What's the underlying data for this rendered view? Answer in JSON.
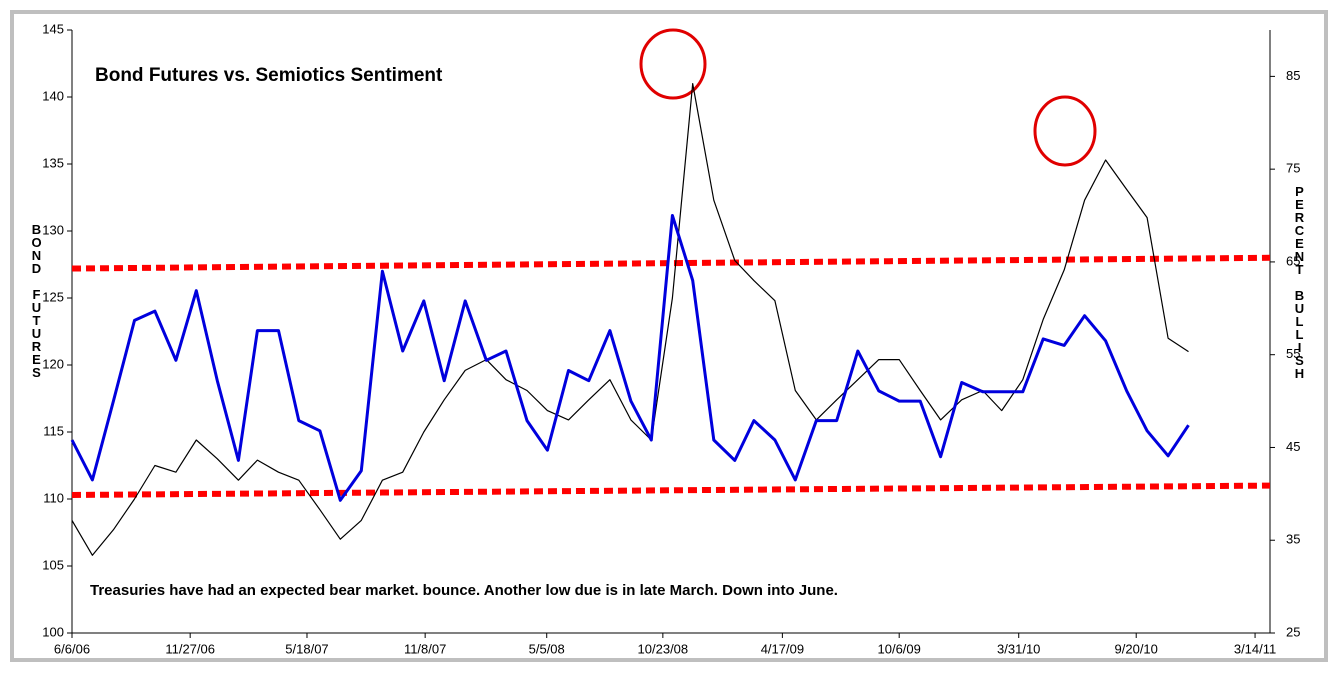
{
  "chart_data": {
    "type": "line",
    "title": "Bond Futures vs. Semiotics Sentiment",
    "annotation": "Treasuries  have had an expected bear market. bounce. Another low due  is in late March.  Down into June.",
    "ylabel": "BOND FUTURES",
    "y2label": "PERCENT BULLISH",
    "xlim": [
      "2006-06-06",
      "2011-04-05"
    ],
    "xticks": [
      {
        "value": "2006-06-06",
        "label": "6/6/06"
      },
      {
        "value": "2006-11-27",
        "label": "11/27/06"
      },
      {
        "value": "2007-05-18",
        "label": "5/18/07"
      },
      {
        "value": "2007-11-08",
        "label": "11/8/07"
      },
      {
        "value": "2008-05-05",
        "label": "5/5/08"
      },
      {
        "value": "2008-10-23",
        "label": "10/23/08"
      },
      {
        "value": "2009-04-17",
        "label": "4/17/09"
      },
      {
        "value": "2009-10-06",
        "label": "10/6/09"
      },
      {
        "value": "2010-03-31",
        "label": "3/31/10"
      },
      {
        "value": "2010-09-20",
        "label": "9/20/10"
      },
      {
        "value": "2011-03-14",
        "label": "3/14/11"
      }
    ],
    "ylim": [
      100,
      145
    ],
    "yticks": [
      100,
      105,
      110,
      115,
      120,
      125,
      130,
      135,
      140,
      145
    ],
    "y2lim": [
      25,
      90
    ],
    "y2ticks": [
      25,
      35,
      45,
      55,
      65,
      75,
      85
    ],
    "x": [
      "2006-06-06",
      "2006-07-06",
      "2006-08-06",
      "2006-09-06",
      "2006-10-06",
      "2006-11-06",
      "2006-12-06",
      "2007-01-06",
      "2007-02-06",
      "2007-03-06",
      "2007-04-06",
      "2007-05-06",
      "2007-06-06",
      "2007-07-06",
      "2007-08-06",
      "2007-09-06",
      "2007-10-06",
      "2007-11-06",
      "2007-12-06",
      "2008-01-06",
      "2008-02-06",
      "2008-03-06",
      "2008-04-06",
      "2008-05-06",
      "2008-06-06",
      "2008-07-06",
      "2008-08-06",
      "2008-09-06",
      "2008-10-06",
      "2008-11-06",
      "2008-12-06",
      "2009-01-06",
      "2009-02-06",
      "2009-03-06",
      "2009-04-06",
      "2009-05-06",
      "2009-06-06",
      "2009-07-06",
      "2009-08-06",
      "2009-09-06",
      "2009-10-06",
      "2009-11-06",
      "2009-12-06",
      "2010-01-06",
      "2010-02-06",
      "2010-03-06",
      "2010-04-06",
      "2010-05-06",
      "2010-06-06",
      "2010-07-06",
      "2010-08-06",
      "2010-09-06",
      "2010-10-06",
      "2010-11-06",
      "2010-12-06"
    ],
    "series": [
      {
        "color": "#000000",
        "values": [
          108.4,
          105.8,
          107.7,
          110,
          112.5,
          112,
          114.4,
          113,
          111.4,
          112.9,
          112,
          111.4,
          109.2,
          107,
          108.4,
          111.4,
          112,
          115,
          117.4,
          119.6,
          120.4,
          118.9,
          118.1,
          116.6,
          115.9,
          117.4,
          118.9,
          115.9,
          114.4,
          125,
          141,
          132.3,
          127.8,
          126.3,
          124.8,
          118.1,
          115.9,
          117.4,
          118.9,
          120.4,
          120.4,
          118.1,
          115.9,
          117.4,
          118.1,
          116.6,
          118.9,
          123.4,
          127.1,
          132.3,
          135.3,
          133.1,
          131,
          122,
          121
        ]
      },
      {
        "color": "#0000dd",
        "axis": "y2",
        "values": [
          45.8,
          41.5,
          50,
          58.7,
          59.7,
          54.4,
          61.9,
          52.2,
          43.6,
          57.6,
          57.6,
          47.9,
          46.8,
          39.3,
          42.5,
          64,
          55.4,
          60.8,
          52.2,
          60.8,
          54.4,
          55.4,
          47.9,
          44.7,
          53.3,
          52.2,
          57.6,
          50,
          45.8,
          70,
          63,
          45.8,
          43.6,
          47.9,
          45.8,
          41.5,
          47.9,
          47.9,
          55.4,
          51.1,
          50,
          50,
          44,
          52,
          51,
          51,
          51,
          56.7,
          56,
          59.2,
          56.5,
          51.1,
          46.8,
          44.1,
          47.4
        ]
      }
    ],
    "reference_lines": [
      {
        "color": "#ff0000",
        "values": [
          127.2,
          128
        ]
      },
      {
        "color": "#ff0000",
        "values": [
          110.3,
          111
        ]
      }
    ]
  }
}
